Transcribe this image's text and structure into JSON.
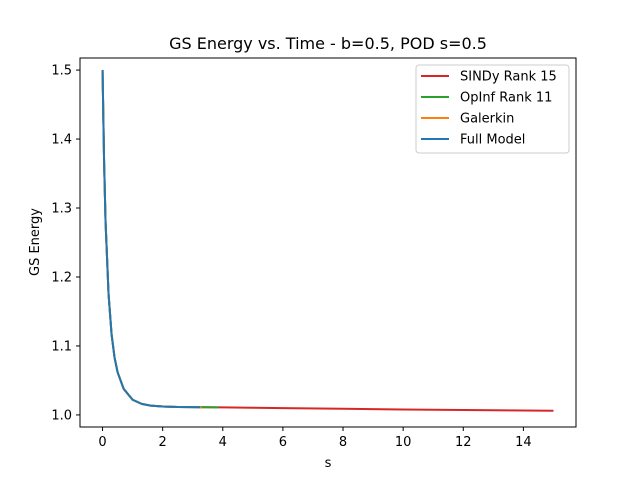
{
  "chart_data": {
    "type": "line",
    "title": "GS Energy vs. Time - b=0.5, POD s=0.5",
    "xlabel": "s",
    "ylabel": "GS Energy",
    "xlim": [
      -0.75,
      15.75
    ],
    "ylim": [
      0.9825,
      1.5175
    ],
    "xticks": [
      0,
      2,
      4,
      6,
      8,
      10,
      12,
      14
    ],
    "yticks": [
      1.0,
      1.1,
      1.2,
      1.3,
      1.4,
      1.5
    ],
    "xtick_labels": [
      "0",
      "2",
      "4",
      "6",
      "8",
      "10",
      "12",
      "14"
    ],
    "ytick_labels": [
      "1.0",
      "1.1",
      "1.2",
      "1.3",
      "1.4",
      "1.5"
    ],
    "grid": false,
    "legend_position": "top-right",
    "series": [
      {
        "name": "SINDy Rank 15",
        "color": "#d62728",
        "x": [
          0,
          0.05,
          0.1,
          0.2,
          0.3,
          0.4,
          0.5,
          0.7,
          1.0,
          1.3,
          1.6,
          2.0,
          2.5,
          3.0,
          3.5,
          4.0,
          5.0,
          6.0,
          8.0,
          10.0,
          12.0,
          14.0,
          15.0
        ],
        "y": [
          1.5,
          1.37,
          1.28,
          1.175,
          1.117,
          1.083,
          1.062,
          1.038,
          1.022,
          1.016,
          1.0135,
          1.0122,
          1.0115,
          1.0113,
          1.0111,
          1.0109,
          1.0104,
          1.0099,
          1.0089,
          1.0079,
          1.0071,
          1.0064,
          1.0061
        ]
      },
      {
        "name": "OpInf Rank 11",
        "color": "#2ca02c",
        "x": [
          0,
          0.05,
          0.1,
          0.2,
          0.3,
          0.4,
          0.5,
          0.7,
          1.0,
          1.3,
          1.6,
          2.0,
          2.5,
          3.0,
          3.5,
          3.85
        ],
        "y": [
          1.5,
          1.37,
          1.28,
          1.175,
          1.117,
          1.083,
          1.062,
          1.038,
          1.022,
          1.016,
          1.0135,
          1.0122,
          1.0115,
          1.0113,
          1.0111,
          1.011
        ]
      },
      {
        "name": "Galerkin",
        "color": "#ff7f0e",
        "x": [
          0,
          0.05,
          0.1,
          0.2,
          0.3,
          0.4,
          0.5,
          0.7,
          1.0,
          1.3,
          1.6,
          2.0,
          2.5,
          3.0,
          3.3
        ],
        "y": [
          1.5,
          1.37,
          1.28,
          1.175,
          1.117,
          1.083,
          1.062,
          1.038,
          1.022,
          1.016,
          1.0135,
          1.0122,
          1.0115,
          1.0113,
          1.0112
        ]
      },
      {
        "name": "Full Model",
        "color": "#1f77b4",
        "x": [
          0,
          0.05,
          0.1,
          0.2,
          0.3,
          0.4,
          0.5,
          0.7,
          1.0,
          1.3,
          1.6,
          2.0,
          2.5,
          3.0,
          3.25
        ],
        "y": [
          1.5,
          1.37,
          1.28,
          1.175,
          1.117,
          1.083,
          1.062,
          1.038,
          1.022,
          1.016,
          1.0135,
          1.0122,
          1.0115,
          1.0113,
          1.0112
        ]
      }
    ]
  }
}
